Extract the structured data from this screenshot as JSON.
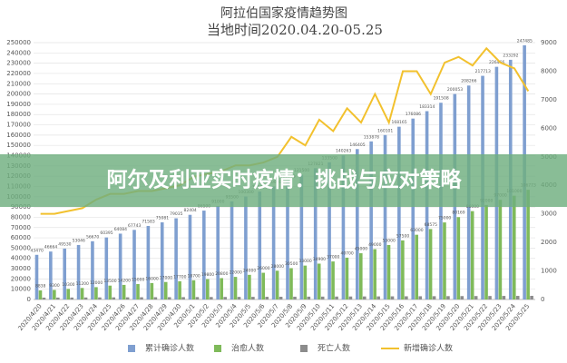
{
  "chart_data": {
    "type": "bar",
    "title": "阿拉伯国家疫情趋势图",
    "subtitle": "当地时间2020.04.20-05.25",
    "categories": [
      "2020/4/20",
      "2020/4/21",
      "2020/4/22",
      "2020/4/23",
      "2020/4/24",
      "2020/4/25",
      "2020/4/26",
      "2020/4/27",
      "2020/4/28",
      "2020/4/29",
      "2020/4/30",
      "2020/5/1",
      "2020/5/2",
      "2020/5/3",
      "2020/5/4",
      "2020/5/5",
      "2020/5/6",
      "2020/5/7",
      "2020/5/8",
      "2020/5/9",
      "2020/5/10",
      "2020/5/11",
      "2020/5/12",
      "2020/5/13",
      "2020/5/14",
      "2020/5/15",
      "2020/5/16",
      "2020/5/17",
      "2020/5/18",
      "2020/5/19",
      "2020/5/20",
      "2020/5/21",
      "2020/5/22",
      "2020/5/23",
      "2020/5/24",
      "2020/5/25"
    ],
    "series": [
      {
        "name": "累计确诊人数",
        "color": "#7f9fd0",
        "values": [
          43470,
          46664,
          49530,
          53046,
          56670,
          60395,
          64084,
          67743,
          71583,
          75081,
          79035,
          82404,
          86500,
          91000,
          95500,
          100300,
          105000,
          110000,
          115500,
          121500,
          127821,
          133500,
          140263,
          146405,
          153878,
          160101,
          168165,
          176086,
          183314,
          191508,
          200053,
          208266,
          217713,
          226466,
          233292,
          247485
        ]
      },
      {
        "name": "治愈人数",
        "color": "#7fba5a",
        "values": [
          8838,
          9300,
          10300,
          11200,
          12000,
          13500,
          14200,
          15000,
          16000,
          17000,
          17700,
          18700,
          19800,
          20800,
          22000,
          24000,
          26000,
          28000,
          30500,
          33000,
          34900,
          37000,
          40700,
          45000,
          49000,
          53000,
          57500,
          63000,
          68575,
          75000,
          80169,
          86000,
          92000,
          97000,
          101000,
          106773
        ]
      },
      {
        "name": "死亡人数",
        "color": "#8c8c8c",
        "values": [
          1800,
          1850,
          1900,
          1950,
          2000,
          2050,
          2100,
          2150,
          2200,
          2250,
          2300,
          2350,
          2400,
          2450,
          2500,
          2550,
          2600,
          2650,
          2700,
          2750,
          2800,
          2850,
          2900,
          2950,
          3000,
          3050,
          3100,
          3150,
          3200,
          3250,
          3300,
          3350,
          3400,
          3450,
          3500,
          3550
        ]
      },
      {
        "name": "新增确诊人数",
        "color": "#f2c12e",
        "axis": "y2",
        "values": [
          3000,
          3000,
          3100,
          3200,
          3500,
          3700,
          3700,
          3800,
          3800,
          3900,
          4000,
          4300,
          4400,
          4500,
          4700,
          4700,
          4800,
          5000,
          5700,
          5400,
          6300,
          5900,
          6700,
          6200,
          7200,
          6200,
          8000,
          8000,
          7200,
          8300,
          8500,
          8200,
          8800,
          8300,
          8100,
          7300
        ]
      }
    ],
    "ylim": [
      0,
      250000
    ],
    "yticks": [
      0,
      10000,
      20000,
      30000,
      40000,
      50000,
      60000,
      70000,
      80000,
      90000,
      100000,
      110000,
      120000,
      130000,
      140000,
      150000,
      160000,
      170000,
      180000,
      190000,
      200000,
      210000,
      220000,
      230000,
      240000,
      250000
    ],
    "y2lim": [
      0,
      9000
    ],
    "y2ticks": [
      0,
      1000,
      2000,
      3000,
      4000,
      5000,
      6000,
      7000,
      8000,
      9000
    ],
    "grid": true
  },
  "banner": "阿尔及利亚实时疫情：挑战与应对策略"
}
